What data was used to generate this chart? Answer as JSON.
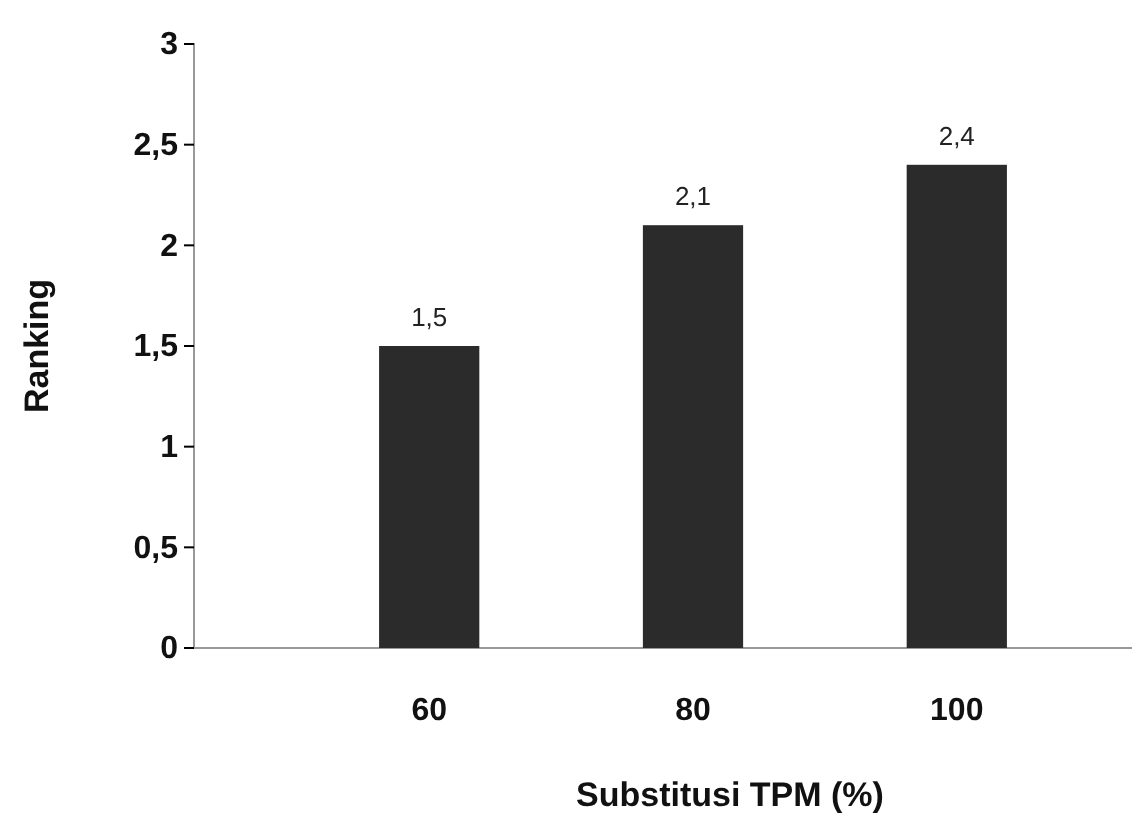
{
  "chart_data": {
    "type": "bar",
    "xlabel": "Substitusi TPM (%)",
    "ylabel": "Ranking",
    "categories": [
      "60",
      "80",
      "100"
    ],
    "values": [
      1.5,
      2.1,
      2.4
    ],
    "value_labels": [
      "1,5",
      "2,1",
      "2,4"
    ],
    "color": "#2b2b2b",
    "ylim": [
      0,
      3
    ],
    "yticks": [
      0,
      {
        "value": 0.5,
        "label": "0,5"
      },
      1,
      {
        "value": 1.5,
        "label": "1,5"
      },
      2,
      {
        "value": 2.5,
        "label": "2,5"
      },
      3
    ]
  }
}
